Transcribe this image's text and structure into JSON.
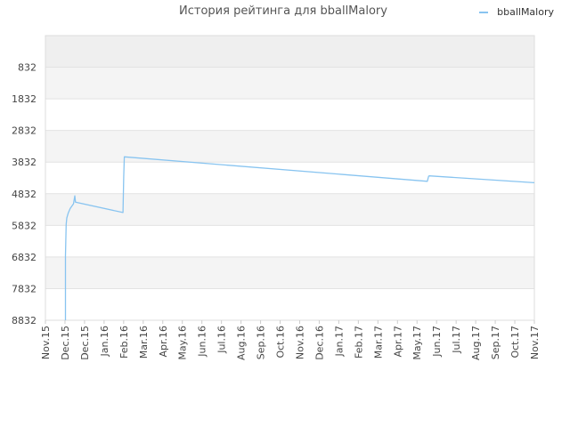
{
  "chart_data": {
    "type": "line",
    "title": "История рейтинга для bballMalory",
    "xlabel": "",
    "ylabel": "",
    "y_inverted": true,
    "ylim": [
      8832,
      0
    ],
    "y_ticks": [
      832,
      1832,
      2832,
      3832,
      4832,
      5832,
      6832,
      7832,
      8832
    ],
    "x_ticks": [
      "Nov.15",
      "Dec.15",
      "Dec.15",
      "Jan.16",
      "Feb.16",
      "Mar.16",
      "Apr.16",
      "May.16",
      "Jun.16",
      "Jul.16",
      "Aug.16",
      "Sep.16",
      "Oct.16",
      "Nov.16",
      "Dec.16",
      "Jan.17",
      "Feb.17",
      "Mar.17",
      "Apr.17",
      "May.17",
      "Jun.17",
      "Jul.17",
      "Aug.17",
      "Sep.17",
      "Oct.17",
      "Nov.17"
    ],
    "legend_position": "top-right",
    "grid": true,
    "series": [
      {
        "name": "bballMalory",
        "color": "#88c4f0",
        "x": [
          "2015-12-01",
          "2015-12-01",
          "2015-12-02",
          "2015-12-03",
          "2015-12-05",
          "2015-12-08",
          "2015-12-13",
          "2015-12-15",
          "2015-12-16",
          "2016-02-25",
          "2016-02-26",
          "2016-02-27",
          "2017-05-25",
          "2017-05-27",
          "2017-05-28",
          "2017-11-01"
        ],
        "values": [
          8832,
          6800,
          5800,
          5600,
          5450,
          5300,
          5150,
          4900,
          5100,
          5425,
          4300,
          3665,
          4440,
          4276,
          4266,
          4485
        ]
      }
    ]
  }
}
